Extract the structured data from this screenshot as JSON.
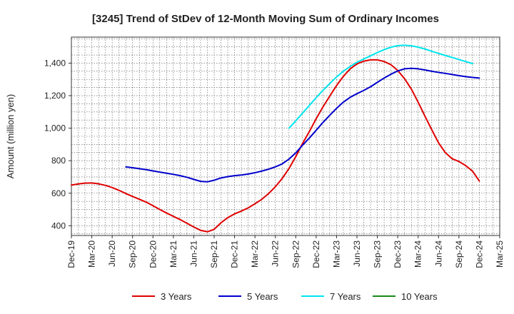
{
  "chart_data": {
    "type": "line",
    "title": "[3245]  Trend of StDev of 12-Month Moving Sum of Ordinary Incomes",
    "xlabel": "",
    "ylabel": "Amount (million yen)",
    "ylim": [
      340,
      1560
    ],
    "yticks": [
      400,
      600,
      800,
      1000,
      1200,
      1400
    ],
    "ytick_labels": [
      "400",
      "600",
      "800",
      "1,000",
      "1,200",
      "1,400"
    ],
    "categories": [
      "Dec-19",
      "Mar-20",
      "Jun-20",
      "Sep-20",
      "Dec-20",
      "Mar-21",
      "Jun-21",
      "Sep-21",
      "Dec-21",
      "Mar-22",
      "Jun-22",
      "Sep-22",
      "Dec-22",
      "Mar-23",
      "Jun-23",
      "Sep-23",
      "Dec-23",
      "Mar-24",
      "Jun-24",
      "Sep-24",
      "Dec-24",
      "Mar-25"
    ],
    "grid": true,
    "legend_position": "bottom",
    "series": [
      {
        "name": "3 Years",
        "color": "#e00000",
        "points": [
          [
            0,
            650
          ],
          [
            0.33,
            657
          ],
          [
            0.67,
            662
          ],
          [
            1,
            663
          ],
          [
            1.33,
            658
          ],
          [
            1.67,
            648
          ],
          [
            2,
            635
          ],
          [
            2.33,
            618
          ],
          [
            2.67,
            598
          ],
          [
            3,
            580
          ],
          [
            3.33,
            563
          ],
          [
            3.67,
            545
          ],
          [
            4,
            523
          ],
          [
            4.33,
            500
          ],
          [
            4.67,
            478
          ],
          [
            5,
            458
          ],
          [
            5.33,
            438
          ],
          [
            5.67,
            415
          ],
          [
            6,
            392
          ],
          [
            6.33,
            372
          ],
          [
            6.67,
            363
          ],
          [
            7,
            378
          ],
          [
            7.33,
            418
          ],
          [
            7.67,
            450
          ],
          [
            8,
            473
          ],
          [
            8.33,
            490
          ],
          [
            8.67,
            510
          ],
          [
            9,
            535
          ],
          [
            9.33,
            562
          ],
          [
            9.67,
            598
          ],
          [
            10,
            640
          ],
          [
            10.33,
            690
          ],
          [
            10.67,
            752
          ],
          [
            11,
            825
          ],
          [
            11.33,
            905
          ],
          [
            11.67,
            980
          ],
          [
            12,
            1058
          ],
          [
            12.33,
            1130
          ],
          [
            12.67,
            1198
          ],
          [
            13,
            1262
          ],
          [
            13.33,
            1318
          ],
          [
            13.67,
            1365
          ],
          [
            14,
            1395
          ],
          [
            14.33,
            1412
          ],
          [
            14.67,
            1420
          ],
          [
            15,
            1420
          ],
          [
            15.33,
            1410
          ],
          [
            15.67,
            1390
          ],
          [
            16,
            1355
          ],
          [
            16.33,
            1305
          ],
          [
            16.67,
            1240
          ],
          [
            17,
            1160
          ],
          [
            17.33,
            1075
          ],
          [
            17.67,
            990
          ],
          [
            18,
            910
          ],
          [
            18.33,
            850
          ],
          [
            18.67,
            812
          ],
          [
            19,
            795
          ],
          [
            19.33,
            770
          ],
          [
            19.67,
            735
          ],
          [
            20,
            675
          ]
        ]
      },
      {
        "name": "5 Years",
        "color": "#0000cc",
        "points": [
          [
            2.67,
            762
          ],
          [
            3,
            757
          ],
          [
            3.33,
            751
          ],
          [
            3.67,
            745
          ],
          [
            4,
            737
          ],
          [
            4.33,
            730
          ],
          [
            4.67,
            723
          ],
          [
            5,
            716
          ],
          [
            5.33,
            708
          ],
          [
            5.67,
            698
          ],
          [
            6,
            685
          ],
          [
            6.33,
            673
          ],
          [
            6.67,
            670
          ],
          [
            7,
            680
          ],
          [
            7.33,
            694
          ],
          [
            7.67,
            702
          ],
          [
            8,
            708
          ],
          [
            8.33,
            712
          ],
          [
            8.67,
            718
          ],
          [
            9,
            726
          ],
          [
            9.33,
            736
          ],
          [
            9.67,
            748
          ],
          [
            10,
            762
          ],
          [
            10.33,
            780
          ],
          [
            10.67,
            810
          ],
          [
            11,
            848
          ],
          [
            11.33,
            895
          ],
          [
            11.67,
            940
          ],
          [
            12,
            987
          ],
          [
            12.33,
            1035
          ],
          [
            12.67,
            1080
          ],
          [
            13,
            1122
          ],
          [
            13.33,
            1160
          ],
          [
            13.67,
            1190
          ],
          [
            14,
            1212
          ],
          [
            14.33,
            1232
          ],
          [
            14.67,
            1255
          ],
          [
            15,
            1282
          ],
          [
            15.33,
            1308
          ],
          [
            15.67,
            1332
          ],
          [
            16,
            1352
          ],
          [
            16.33,
            1365
          ],
          [
            16.67,
            1368
          ],
          [
            17,
            1365
          ],
          [
            17.33,
            1358
          ],
          [
            17.67,
            1350
          ],
          [
            18,
            1343
          ],
          [
            18.33,
            1337
          ],
          [
            18.67,
            1330
          ],
          [
            19,
            1323
          ],
          [
            19.33,
            1317
          ],
          [
            19.67,
            1312
          ],
          [
            20,
            1308
          ]
        ]
      },
      {
        "name": "7 Years",
        "color": "#00e5ee",
        "points": [
          [
            10.67,
            1000
          ],
          [
            11,
            1045
          ],
          [
            11.33,
            1092
          ],
          [
            11.67,
            1140
          ],
          [
            12,
            1188
          ],
          [
            12.33,
            1232
          ],
          [
            12.67,
            1275
          ],
          [
            13,
            1315
          ],
          [
            13.33,
            1350
          ],
          [
            13.67,
            1380
          ],
          [
            14,
            1405
          ],
          [
            14.33,
            1425
          ],
          [
            14.67,
            1445
          ],
          [
            15,
            1465
          ],
          [
            15.33,
            1483
          ],
          [
            15.67,
            1498
          ],
          [
            16,
            1508
          ],
          [
            16.33,
            1510
          ],
          [
            16.67,
            1507
          ],
          [
            17,
            1498
          ],
          [
            17.33,
            1487
          ],
          [
            17.67,
            1473
          ],
          [
            18,
            1460
          ],
          [
            18.33,
            1447
          ],
          [
            18.67,
            1435
          ],
          [
            19,
            1422
          ],
          [
            19.33,
            1410
          ],
          [
            19.67,
            1397
          ]
        ]
      },
      {
        "name": "10 Years",
        "color": "#1a8a1a",
        "points": []
      }
    ]
  }
}
